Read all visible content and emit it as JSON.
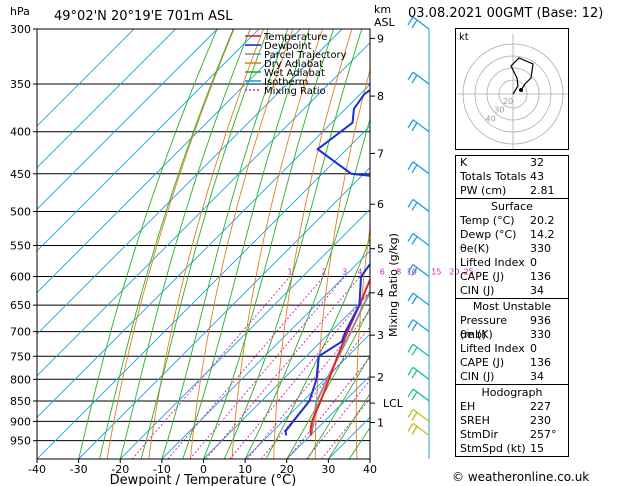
{
  "header": {
    "location": "49°02'N  20°19'E  701m  ASL",
    "date": "03.08.2021  00GMT  (Base: 12)",
    "hpa_label": "hPa",
    "km_label": "km",
    "asl_label": "ASL"
  },
  "axes": {
    "xlabel": "Dewpoint / Temperature (°C)",
    "mix_label": "Mixing Ratio (g/kg)"
  },
  "legend": [
    {
      "label": "Temperature",
      "color": "#e8202a"
    },
    {
      "label": "Dewpoint",
      "color": "#1530d8"
    },
    {
      "label": "Parcel Trajectory",
      "color": "#909090"
    },
    {
      "label": "Dry Adiabat",
      "color": "#e08020"
    },
    {
      "label": "Wet Adiabat",
      "color": "#28b028"
    },
    {
      "label": "Isotherm",
      "color": "#20a0e0"
    },
    {
      "label": "Mixing Ratio",
      "color": "#d020b0"
    }
  ],
  "chart_data": {
    "type": "line",
    "pressure_ticks": [
      300,
      350,
      400,
      450,
      500,
      550,
      600,
      650,
      700,
      750,
      800,
      850,
      900,
      950
    ],
    "temp_ticks": [
      -40,
      -30,
      -20,
      -10,
      0,
      10,
      20,
      30,
      40
    ],
    "km_ticks": [
      {
        "label": "9",
        "p": 308
      },
      {
        "label": "8",
        "p": 362
      },
      {
        "label": "7",
        "p": 425
      },
      {
        "label": "6",
        "p": 490
      },
      {
        "label": "5",
        "p": 555
      },
      {
        "label": "4",
        "p": 628
      },
      {
        "label": "3",
        "p": 707
      },
      {
        "label": "2",
        "p": 795
      },
      {
        "label": "1",
        "p": 903
      }
    ],
    "lcl": {
      "label": "LCL",
      "p": 855
    },
    "mixing_ratio_labels": [
      "1",
      "2",
      "3",
      "4",
      "6",
      "8",
      "10",
      "15",
      "20",
      "25"
    ],
    "mixing_ratio_values": [
      1,
      2,
      3,
      4,
      6,
      8,
      10,
      15,
      20,
      25
    ],
    "temperature": [
      [
        936,
        20.2
      ],
      [
        925,
        19.0
      ],
      [
        900,
        17.0
      ],
      [
        850,
        14.2
      ],
      [
        800,
        11.0
      ],
      [
        750,
        7.5
      ],
      [
        700,
        4.0
      ],
      [
        650,
        0.5
      ],
      [
        600,
        -3.5
      ],
      [
        550,
        -8.0
      ],
      [
        500,
        -13.5
      ],
      [
        450,
        -19.5
      ],
      [
        400,
        -25.5
      ],
      [
        350,
        -33.0
      ],
      [
        300,
        -41.0
      ]
    ],
    "dewpoint": [
      [
        936,
        14.2
      ],
      [
        925,
        13.0
      ],
      [
        900,
        12.5
      ],
      [
        850,
        11.5
      ],
      [
        800,
        8.0
      ],
      [
        750,
        3.0
      ],
      [
        720,
        5.0
      ],
      [
        700,
        3.5
      ],
      [
        650,
        0.5
      ],
      [
        600,
        -6.0
      ],
      [
        575,
        -7.0
      ],
      [
        550,
        -8.5
      ],
      [
        500,
        -14.0
      ],
      [
        470,
        -18.0
      ],
      [
        455,
        -23.0
      ],
      [
        450,
        -33.0
      ],
      [
        420,
        -47.0
      ],
      [
        390,
        -45.0
      ],
      [
        375,
        -48.0
      ],
      [
        360,
        -49.0
      ],
      [
        350,
        -48.0
      ],
      [
        330,
        -50.0
      ],
      [
        300,
        -53.0
      ]
    ],
    "parcel": [
      [
        936,
        20.2
      ],
      [
        900,
        17.4
      ],
      [
        855,
        13.6
      ],
      [
        800,
        10.5
      ],
      [
        750,
        7.8
      ],
      [
        700,
        4.8
      ],
      [
        650,
        1.5
      ],
      [
        600,
        -2.0
      ],
      [
        550,
        -6.0
      ],
      [
        500,
        -10.5
      ],
      [
        450,
        -16.0
      ],
      [
        400,
        -22.0
      ],
      [
        350,
        -29.5
      ],
      [
        300,
        -38.0
      ]
    ],
    "wind_barbs_p": [
      300,
      350,
      400,
      450,
      500,
      550,
      600,
      650,
      700,
      750,
      800,
      850,
      900,
      936
    ],
    "hodograph": {
      "label": "kt",
      "ring_labels": [
        "40",
        "30",
        "20"
      ],
      "points": [
        [
          0,
          0
        ],
        [
          5,
          8
        ],
        [
          4,
          16
        ],
        [
          -2,
          28
        ],
        [
          6,
          36
        ],
        [
          20,
          30
        ],
        [
          18,
          16
        ],
        [
          12,
          10
        ],
        [
          8,
          4
        ]
      ]
    }
  },
  "indices": [
    {
      "label": "K",
      "value": "32"
    },
    {
      "label": "Totals Totals",
      "value": "43"
    },
    {
      "label": "PW (cm)",
      "value": "2.81"
    }
  ],
  "surface": {
    "title": "Surface",
    "rows": [
      {
        "label": "Temp (°C)",
        "value": "20.2"
      },
      {
        "label": "Dewp (°C)",
        "value": "14.2"
      },
      {
        "label": "θe(K)",
        "value": "330"
      },
      {
        "label": "Lifted Index",
        "value": "0"
      },
      {
        "label": "CAPE (J)",
        "value": "136"
      },
      {
        "label": "CIN (J)",
        "value": "34"
      }
    ]
  },
  "unstable": {
    "title": "Most Unstable",
    "rows": [
      {
        "label": "Pressure (mb)",
        "value": "936"
      },
      {
        "label": "θe (K)",
        "value": "330"
      },
      {
        "label": "Lifted Index",
        "value": "0"
      },
      {
        "label": "CAPE (J)",
        "value": "136"
      },
      {
        "label": "CIN (J)",
        "value": "34"
      }
    ]
  },
  "hodograph_table": {
    "title": "Hodograph",
    "rows": [
      {
        "label": "EH",
        "value": "227"
      },
      {
        "label": "SREH",
        "value": "230"
      },
      {
        "label": "StmDir",
        "value": "257°"
      },
      {
        "label": "StmSpd (kt)",
        "value": "15"
      }
    ]
  },
  "credit": "© weatheronline.co.uk"
}
